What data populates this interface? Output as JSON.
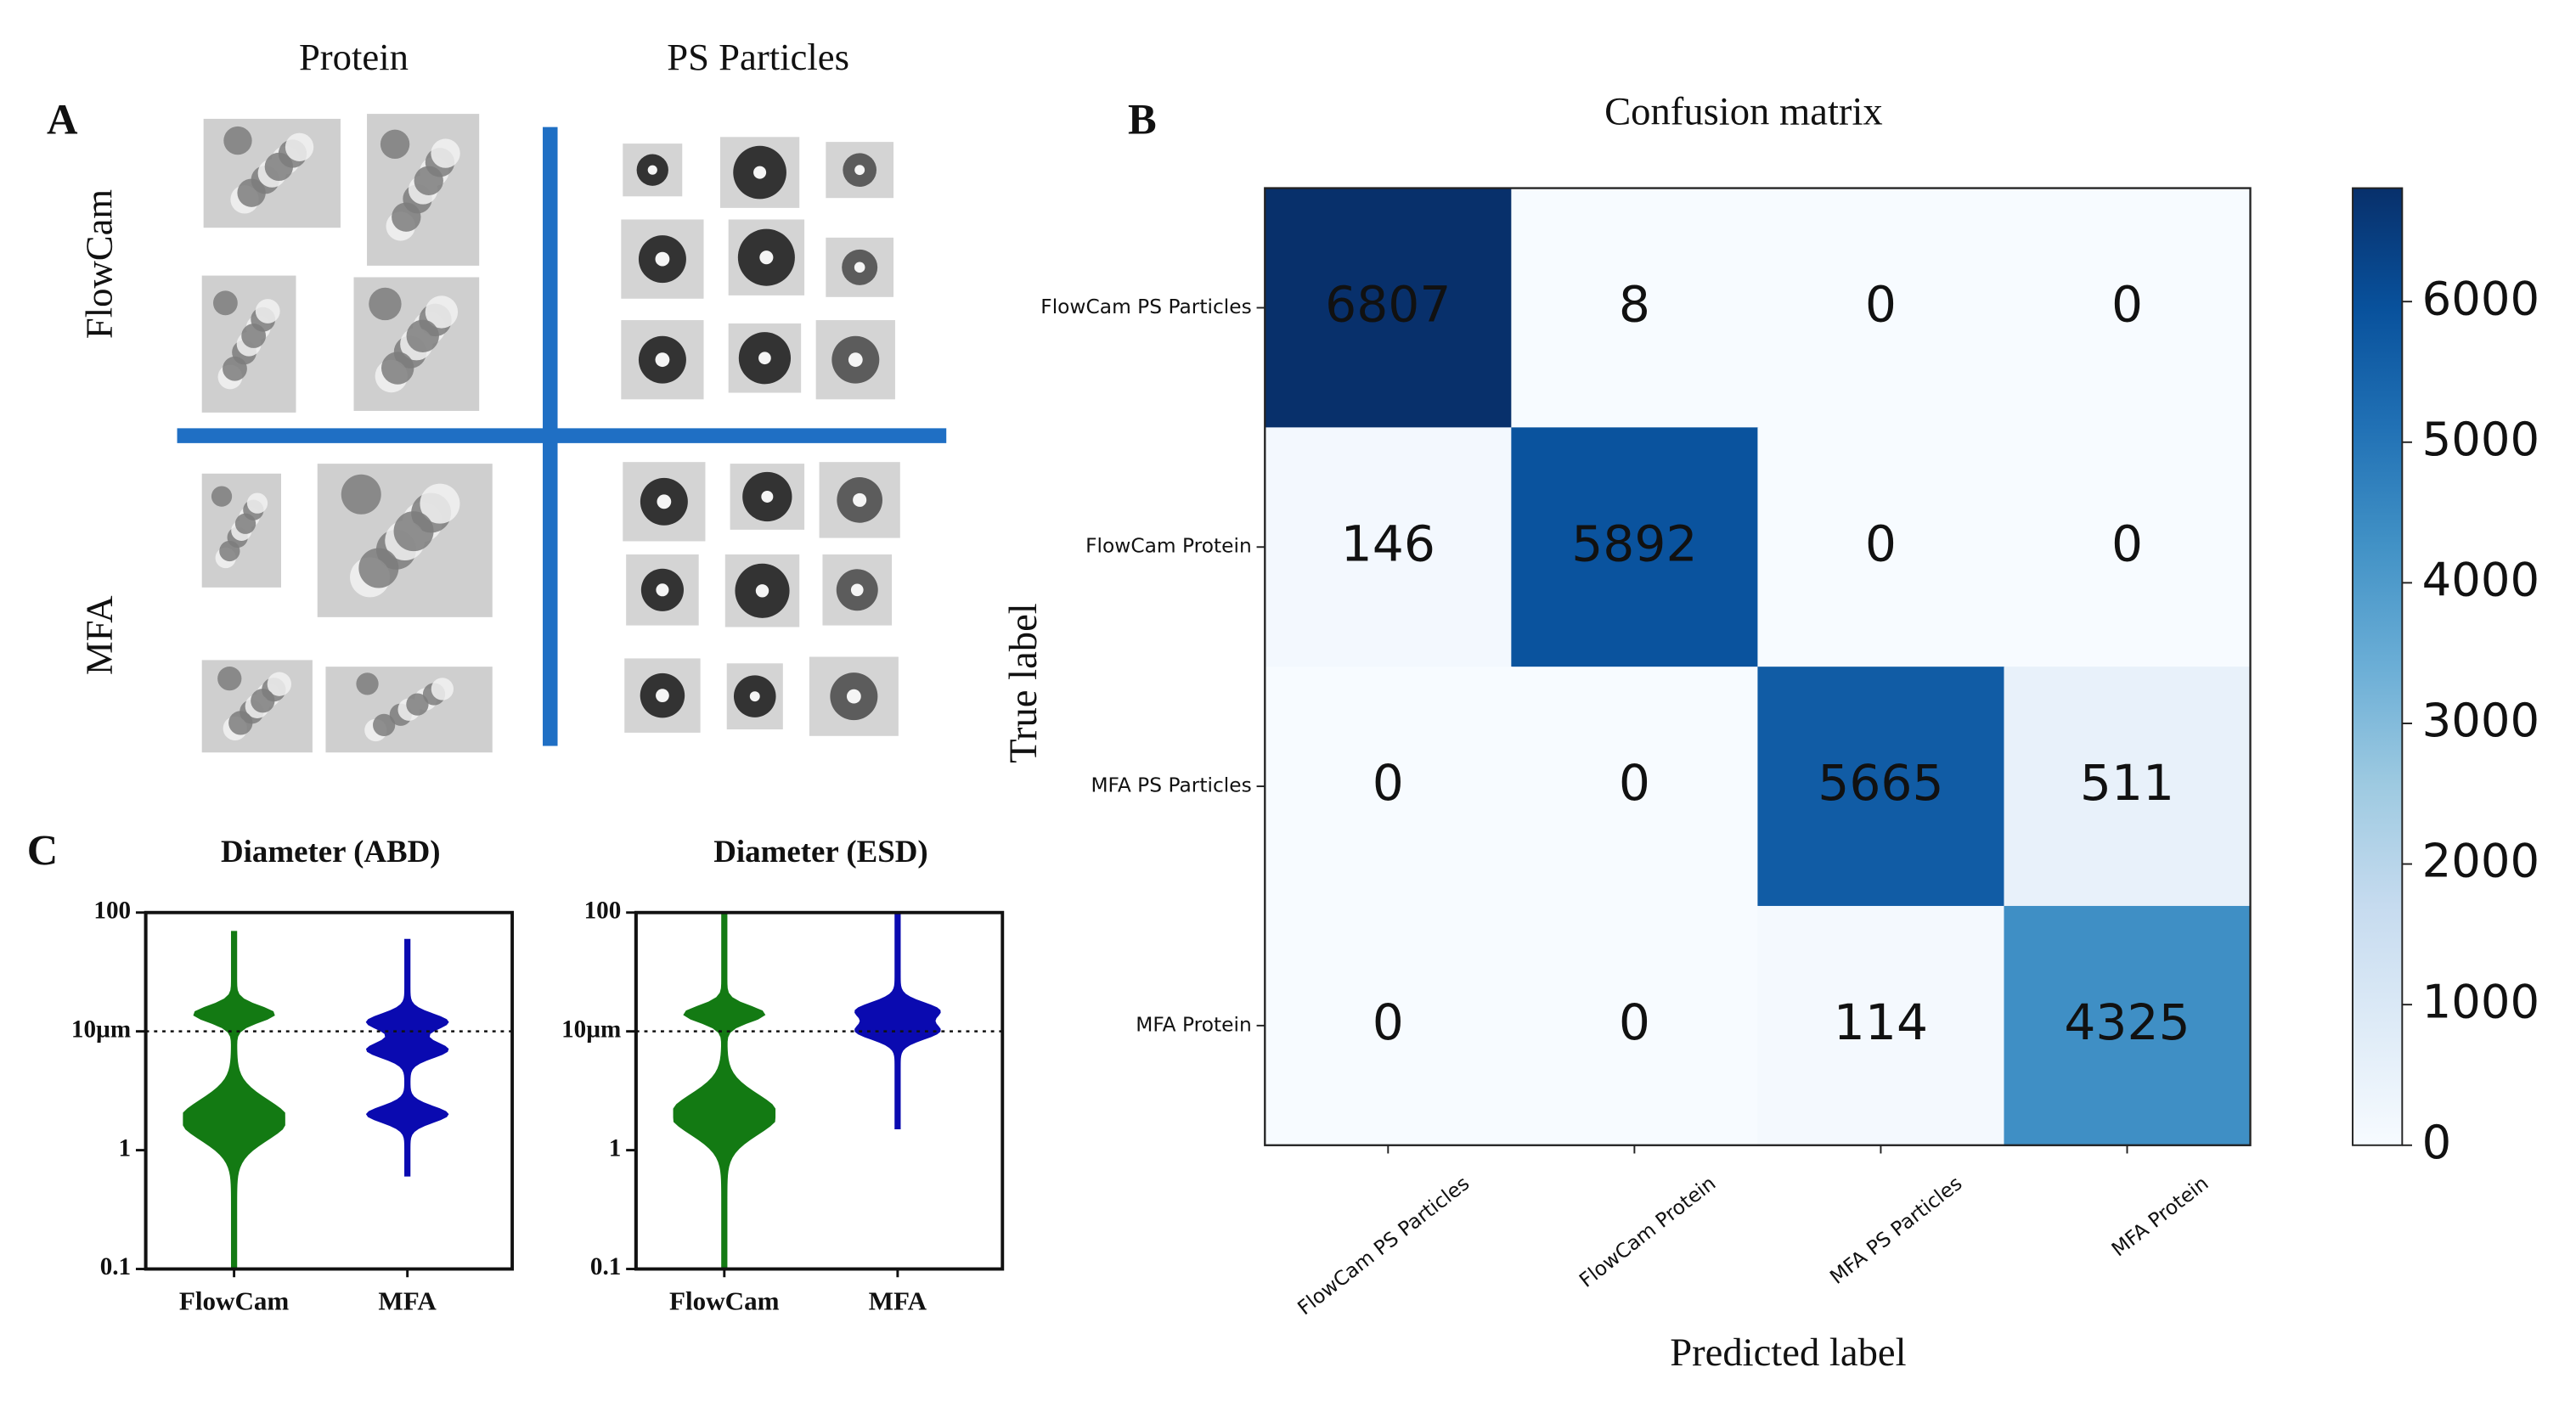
{
  "panels": [
    "A",
    "B",
    "C"
  ],
  "panel_a": {
    "columns": [
      "Protein",
      "PS Particles"
    ],
    "rows": [
      "FlowCam",
      "MFA"
    ]
  },
  "chart_data": [
    {
      "type": "heatmap",
      "title": "Confusion matrix",
      "x_label": "Predicted label",
      "y_label": "True label",
      "categories": [
        "FlowCam PS Particles",
        "FlowCam Protein",
        "MFA PS Particles",
        "MFA Protein"
      ],
      "y_categories": [
        "FlowCam PS Particles",
        "FlowCam Protein",
        "MFA PS Particles",
        "MFA Protein"
      ],
      "values": [
        [
          6807,
          8,
          0,
          0
        ],
        [
          146,
          5892,
          0,
          0
        ],
        [
          0,
          0,
          5665,
          511
        ],
        [
          0,
          0,
          114,
          4325
        ]
      ],
      "colormap": [
        "#f7fbff",
        "#deebf7",
        "#c6dbef",
        "#9ecae1",
        "#6baed6",
        "#4292c6",
        "#2171b5",
        "#08519c",
        "#08306b"
      ],
      "clim": [
        0,
        6807
      ],
      "colorbar_ticks": [
        0,
        1000,
        2000,
        3000,
        4000,
        5000,
        6000
      ]
    },
    {
      "type": "violin",
      "title": "Diameter (ABD)",
      "categories": [
        "FlowCam",
        "MFA"
      ],
      "colors": [
        "#137a13",
        "#0a0ab0"
      ],
      "log_scale": true,
      "ylim": [
        0.1,
        100
      ],
      "yticks": [
        0.1,
        1,
        {
          "value": 10,
          "label": "10µm"
        },
        100
      ],
      "reference_line": 10,
      "min": [
        0.1,
        0.6
      ],
      "max": [
        70,
        60
      ],
      "peaks": [
        [
          1.8,
          14
        ],
        [
          2,
          7,
          12
        ]
      ]
    },
    {
      "type": "violin",
      "title": "Diameter (ESD)",
      "categories": [
        "FlowCam",
        "MFA"
      ],
      "colors": [
        "#137a13",
        "#0a0ab0"
      ],
      "log_scale": true,
      "ylim": [
        0.1,
        100
      ],
      "yticks": [
        0.1,
        1,
        {
          "value": 10,
          "label": "10µm"
        },
        100
      ],
      "reference_line": 10,
      "min": [
        0.1,
        1.5
      ],
      "max": [
        100,
        100
      ],
      "peaks": [
        [
          2,
          14
        ],
        [
          10,
          15
        ]
      ]
    }
  ]
}
